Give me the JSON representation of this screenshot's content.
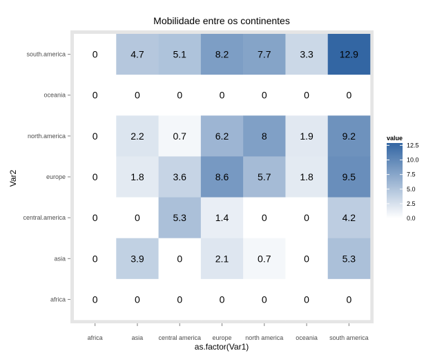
{
  "chart_data": {
    "type": "heatmap",
    "title": "Mobilidade entre os continentes",
    "xlabel": "as.factor(Var1)",
    "ylabel": "Var2",
    "x_categories": [
      "africa",
      "asia",
      "central america",
      "europe",
      "north america",
      "oceania",
      "south america"
    ],
    "y_categories": [
      "south.america",
      "oceania",
      "north.america",
      "europe",
      "central.america",
      "asia",
      "africa"
    ],
    "values": [
      [
        0,
        4.7,
        5.1,
        8.2,
        7.7,
        3.3,
        12.9
      ],
      [
        0,
        0,
        0,
        0,
        0,
        0,
        0
      ],
      [
        0,
        2.2,
        0.7,
        6.2,
        8,
        1.9,
        9.2
      ],
      [
        0,
        1.8,
        3.6,
        8.6,
        5.7,
        1.8,
        9.5
      ],
      [
        0,
        0,
        5.3,
        1.4,
        0,
        0,
        4.2
      ],
      [
        0,
        3.9,
        0,
        2.1,
        0.7,
        0,
        5.3
      ],
      [
        0,
        0,
        0,
        0,
        0,
        0,
        0
      ]
    ],
    "cell_labels": [
      [
        "0",
        "4.7",
        "5.1",
        "8.2",
        "7.7",
        "3.3",
        "12.9"
      ],
      [
        "0",
        "0",
        "0",
        "0",
        "0",
        "0",
        "0"
      ],
      [
        "0",
        "2.2",
        "0.7",
        "6.2",
        "8",
        "1.9",
        "9.2"
      ],
      [
        "0",
        "1.8",
        "3.6",
        "8.6",
        "5.7",
        "1.8",
        "9.5"
      ],
      [
        "0",
        "0",
        "5.3",
        "1.4",
        "0",
        "0",
        "4.2"
      ],
      [
        "0",
        "3.9",
        "0",
        "2.1",
        "0.7",
        "0",
        "5.3"
      ],
      [
        "0",
        "0",
        "0",
        "0",
        "0",
        "0",
        "0"
      ]
    ],
    "legend": {
      "title": "value",
      "ticks": [
        12.5,
        10.0,
        7.5,
        5.0,
        2.5,
        0.0
      ],
      "tick_labels": [
        "12.5",
        "10.0",
        "7.5",
        "5.0",
        "2.5",
        "0.0"
      ],
      "range": [
        0,
        12.9
      ],
      "placement": "right"
    },
    "colors": {
      "low": "#ffffff",
      "high": "#3366a3",
      "panel_background": "#e5e5e5",
      "grid": "#ffffff",
      "text": "#000000",
      "axis_text": "#4d4d4d"
    },
    "grid": true
  }
}
